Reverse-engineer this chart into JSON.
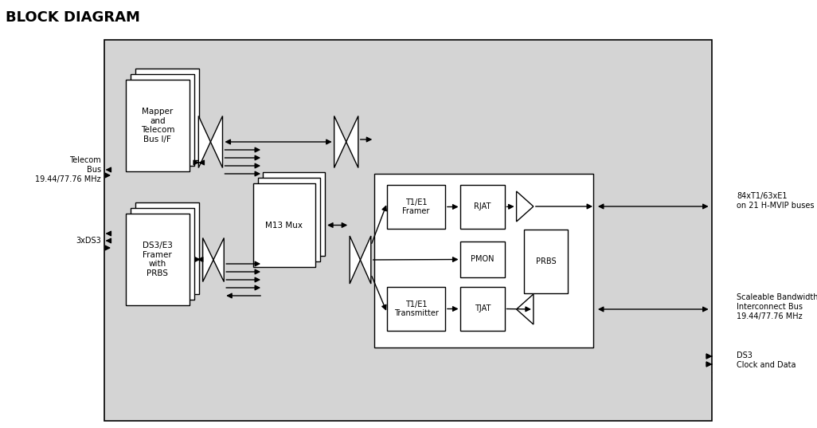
{
  "title": "BLOCK DIAGRAM",
  "bg_color": "#d4d4d4",
  "box_fill": "#ffffff",
  "fig_bg": "#ffffff",
  "title_fontsize": 13,
  "label_fontsize": 7.5,
  "small_fontsize": 7,
  "telecom_bus_label": "Telecom\nBus\n19.44/77.76 MHz",
  "ds3_label": "3xDS3",
  "right_label1": "84xT1/63xE1\non 21 H-MVIP buses",
  "right_label2": "Scaleable Bandwidth\nInterconnect Bus\n19.44/77.76 MHz",
  "right_label3": "DS3\nClock and Data",
  "mapper_label": "Mapper\nand\nTelecom\nBus I/F",
  "ds3_framer_label": "DS3/E3\nFramer\nwith\nPRBS",
  "m13_mux_label": "M13 Mux",
  "t1e1_framer_label": "T1/E1\nFramer",
  "rjat_label": "RJAT",
  "pmon_label": "PMON",
  "prbs_label": "PRBS",
  "t1e1_tx_label": "T1/E1\nTransmitter",
  "tjat_label": "TJAT"
}
